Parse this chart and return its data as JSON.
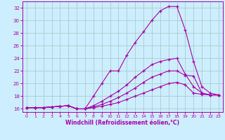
{
  "xlabel": "Windchill (Refroidissement éolien,°C)",
  "background_color": "#cceeff",
  "grid_color": "#aacccc",
  "line_color": "#aa00aa",
  "marker": "+",
  "xlim": [
    -0.5,
    23.5
  ],
  "ylim": [
    15.5,
    33
  ],
  "yticks": [
    16,
    18,
    20,
    22,
    24,
    26,
    28,
    30,
    32
  ],
  "xticks": [
    0,
    1,
    2,
    3,
    4,
    5,
    6,
    7,
    8,
    9,
    10,
    11,
    12,
    13,
    14,
    15,
    16,
    17,
    18,
    19,
    20,
    21,
    22,
    23
  ],
  "lines": [
    {
      "x": [
        0,
        1,
        2,
        3,
        4,
        5,
        6,
        7,
        8,
        9,
        10,
        11,
        12,
        13,
        14,
        15,
        16,
        17,
        18,
        19,
        20,
        21,
        22,
        23
      ],
      "y": [
        16.2,
        16.2,
        16.2,
        16.3,
        16.4,
        16.5,
        16.0,
        16.0,
        18.0,
        20.0,
        22.0,
        22.0,
        24.5,
        26.5,
        28.2,
        30.0,
        31.5,
        32.2,
        32.2,
        28.5,
        23.5,
        19.5,
        18.5,
        18.2
      ]
    },
    {
      "x": [
        0,
        1,
        2,
        3,
        4,
        5,
        6,
        7,
        8,
        9,
        10,
        11,
        12,
        13,
        14,
        15,
        16,
        17,
        18,
        19,
        20,
        21,
        22,
        23
      ],
      "y": [
        16.2,
        16.2,
        16.2,
        16.3,
        16.4,
        16.5,
        16.0,
        16.0,
        16.5,
        17.2,
        18.0,
        18.8,
        19.8,
        21.0,
        22.0,
        23.0,
        23.5,
        23.8,
        24.0,
        21.5,
        19.5,
        18.5,
        18.2,
        18.2
      ]
    },
    {
      "x": [
        0,
        1,
        2,
        3,
        4,
        5,
        6,
        7,
        8,
        9,
        10,
        11,
        12,
        13,
        14,
        15,
        16,
        17,
        18,
        19,
        20,
        21,
        22,
        23
      ],
      "y": [
        16.2,
        16.2,
        16.2,
        16.3,
        16.4,
        16.5,
        16.0,
        16.0,
        16.3,
        16.7,
        17.2,
        17.8,
        18.5,
        19.3,
        20.2,
        21.0,
        21.5,
        22.0,
        22.0,
        21.3,
        21.2,
        18.5,
        18.2,
        18.2
      ]
    },
    {
      "x": [
        0,
        1,
        2,
        3,
        4,
        5,
        6,
        7,
        8,
        9,
        10,
        11,
        12,
        13,
        14,
        15,
        16,
        17,
        18,
        19,
        20,
        21,
        22,
        23
      ],
      "y": [
        16.2,
        16.2,
        16.2,
        16.3,
        16.4,
        16.5,
        16.0,
        16.0,
        16.2,
        16.4,
        16.7,
        17.0,
        17.5,
        18.0,
        18.5,
        19.0,
        19.5,
        20.0,
        20.2,
        19.8,
        18.5,
        18.3,
        18.2,
        18.2
      ]
    }
  ]
}
